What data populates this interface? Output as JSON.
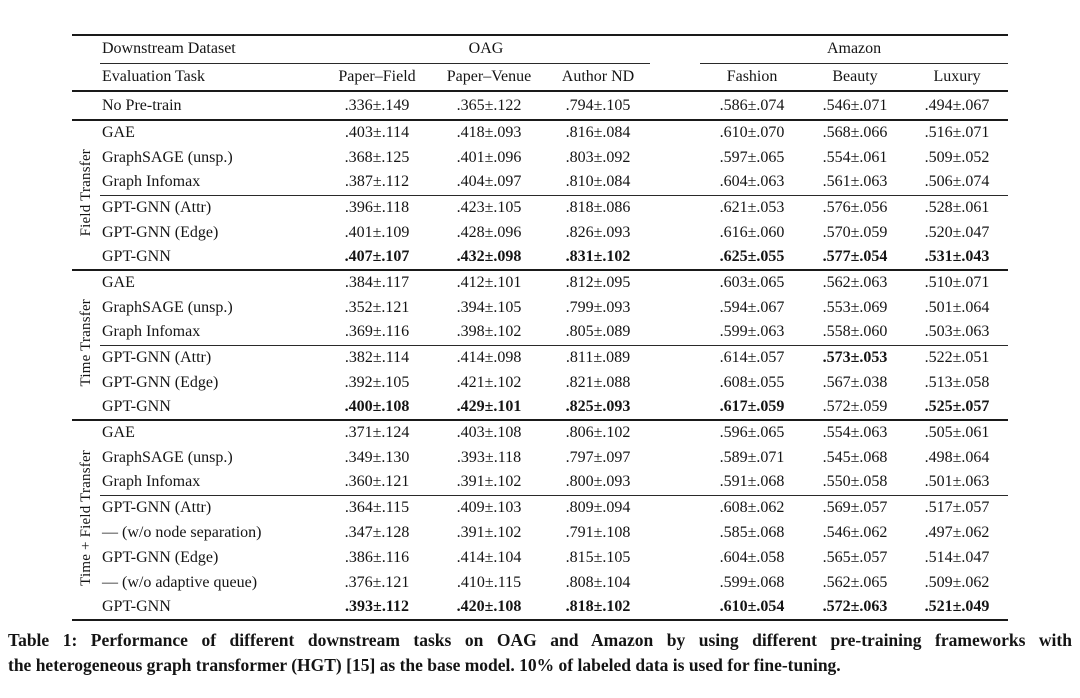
{
  "table": {
    "header": {
      "dataset_label": "Downstream Dataset",
      "task_label": "Evaluation Task",
      "groups": [
        {
          "name": "OAG",
          "cols": [
            "Paper–Field",
            "Paper–Venue",
            "Author ND"
          ]
        },
        {
          "name": "Amazon",
          "cols": [
            "Fashion",
            "Beauty",
            "Luxury"
          ]
        }
      ]
    },
    "baseline": {
      "label": "No Pre-train",
      "values": [
        ".336±.149",
        ".365±.122",
        ".794±.105",
        ".586±.074",
        ".546±.071",
        ".494±.067"
      ]
    },
    "sections": [
      {
        "group_label": "Field Transfer",
        "subgroups": [
          {
            "rows": [
              {
                "label": "GAE",
                "values": [
                  ".403±.114",
                  ".418±.093",
                  ".816±.084",
                  ".610±.070",
                  ".568±.066",
                  ".516±.071"
                ]
              },
              {
                "label": "GraphSAGE (unsp.)",
                "values": [
                  ".368±.125",
                  ".401±.096",
                  ".803±.092",
                  ".597±.065",
                  ".554±.061",
                  ".509±.052"
                ]
              },
              {
                "label": "Graph Infomax",
                "values": [
                  ".387±.112",
                  ".404±.097",
                  ".810±.084",
                  ".604±.063",
                  ".561±.063",
                  ".506±.074"
                ]
              }
            ]
          },
          {
            "rows": [
              {
                "label": "GPT-GNN (Attr)",
                "values": [
                  ".396±.118",
                  ".423±.105",
                  ".818±.086",
                  ".621±.053",
                  ".576±.056",
                  ".528±.061"
                ]
              },
              {
                "label": "GPT-GNN (Edge)",
                "values": [
                  ".401±.109",
                  ".428±.096",
                  ".826±.093",
                  ".616±.060",
                  ".570±.059",
                  ".520±.047"
                ]
              },
              {
                "label": "GPT-GNN",
                "values": [
                  ".407±.107",
                  ".432±.098",
                  ".831±.102",
                  ".625±.055",
                  ".577±.054",
                  ".531±.043"
                ],
                "bold": [
                  true,
                  true,
                  true,
                  true,
                  true,
                  true
                ]
              }
            ]
          }
        ]
      },
      {
        "group_label": "Time Transfer",
        "subgroups": [
          {
            "rows": [
              {
                "label": "GAE",
                "values": [
                  ".384±.117",
                  ".412±.101",
                  ".812±.095",
                  ".603±.065",
                  ".562±.063",
                  ".510±.071"
                ]
              },
              {
                "label": "GraphSAGE (unsp.)",
                "values": [
                  ".352±.121",
                  ".394±.105",
                  ".799±.093",
                  ".594±.067",
                  ".553±.069",
                  ".501±.064"
                ]
              },
              {
                "label": "Graph Infomax",
                "values": [
                  ".369±.116",
                  ".398±.102",
                  ".805±.089",
                  ".599±.063",
                  ".558±.060",
                  ".503±.063"
                ]
              }
            ]
          },
          {
            "rows": [
              {
                "label": "GPT-GNN (Attr)",
                "values": [
                  ".382±.114",
                  ".414±.098",
                  ".811±.089",
                  ".614±.057",
                  ".573±.053",
                  ".522±.051"
                ],
                "bold": [
                  false,
                  false,
                  false,
                  false,
                  true,
                  false
                ]
              },
              {
                "label": "GPT-GNN (Edge)",
                "values": [
                  ".392±.105",
                  ".421±.102",
                  ".821±.088",
                  ".608±.055",
                  ".567±.038",
                  ".513±.058"
                ]
              },
              {
                "label": "GPT-GNN",
                "values": [
                  ".400±.108",
                  ".429±.101",
                  ".825±.093",
                  ".617±.059",
                  ".572±.059",
                  ".525±.057"
                ],
                "bold": [
                  true,
                  true,
                  true,
                  true,
                  false,
                  true
                ]
              }
            ]
          }
        ]
      },
      {
        "group_label": "Time + Field Transfer",
        "subgroups": [
          {
            "rows": [
              {
                "label": "GAE",
                "values": [
                  ".371±.124",
                  ".403±.108",
                  ".806±.102",
                  ".596±.065",
                  ".554±.063",
                  ".505±.061"
                ]
              },
              {
                "label": "GraphSAGE (unsp.)",
                "values": [
                  ".349±.130",
                  ".393±.118",
                  ".797±.097",
                  ".589±.071",
                  ".545±.068",
                  ".498±.064"
                ]
              },
              {
                "label": "Graph Infomax",
                "values": [
                  ".360±.121",
                  ".391±.102",
                  ".800±.093",
                  ".591±.068",
                  ".550±.058",
                  ".501±.063"
                ]
              }
            ]
          },
          {
            "rows": [
              {
                "label": "GPT-GNN (Attr)",
                "values": [
                  ".364±.115",
                  ".409±.103",
                  ".809±.094",
                  ".608±.062",
                  ".569±.057",
                  ".517±.057"
                ]
              },
              {
                "label": "— (w/o node separation)",
                "values": [
                  ".347±.128",
                  ".391±.102",
                  ".791±.108",
                  ".585±.068",
                  ".546±.062",
                  ".497±.062"
                ]
              },
              {
                "label": "GPT-GNN (Edge)",
                "values": [
                  ".386±.116",
                  ".414±.104",
                  ".815±.105",
                  ".604±.058",
                  ".565±.057",
                  ".514±.047"
                ]
              },
              {
                "label": "— (w/o adaptive queue)",
                "values": [
                  ".376±.121",
                  ".410±.115",
                  ".808±.104",
                  ".599±.068",
                  ".562±.065",
                  ".509±.062"
                ]
              },
              {
                "label": "GPT-GNN",
                "values": [
                  ".393±.112",
                  ".420±.108",
                  ".818±.102",
                  ".610±.054",
                  ".572±.063",
                  ".521±.049"
                ],
                "bold": [
                  true,
                  true,
                  true,
                  true,
                  true,
                  true
                ]
              }
            ]
          }
        ]
      }
    ]
  },
  "caption": {
    "lines": [
      "Table 1: Performance of different downstream tasks on OAG and Amazon by using different pre-training frameworks with",
      "the heterogeneous graph transformer (HGT) [15] as the base model. 10% of labeled data is used for fine-tuning."
    ]
  },
  "colors": {
    "text": "#141414",
    "rule": "#1a1a1a",
    "background": "#ffffff"
  }
}
